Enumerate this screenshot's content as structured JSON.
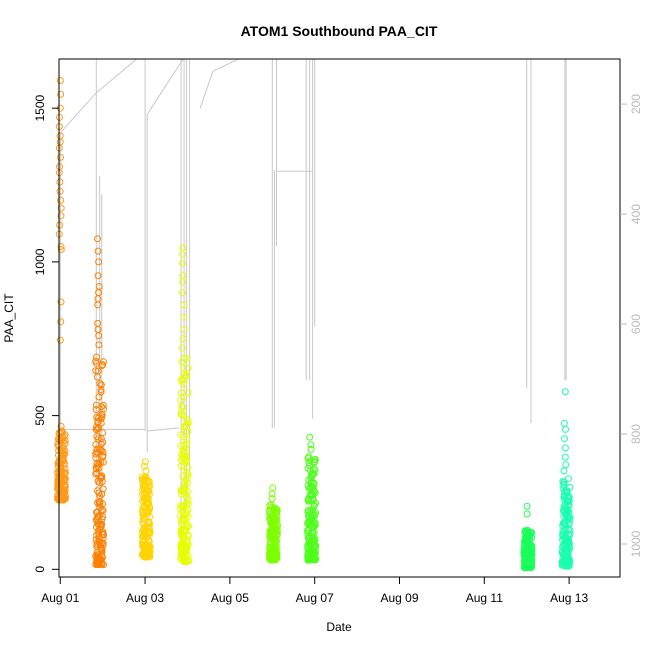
{
  "chart_data": {
    "type": "scatter",
    "title": "ATOM1 Southbound PAA_CIT",
    "xlabel": "Date",
    "ylabel": "PAA_CIT",
    "xlim": [
      -0.03,
      13.2
    ],
    "ylim": [
      -25,
      1660
    ],
    "x_ticks": [
      {
        "value": 0,
        "label": "Aug 01"
      },
      {
        "value": 2,
        "label": "Aug 03"
      },
      {
        "value": 4,
        "label": "Aug 05"
      },
      {
        "value": 6,
        "label": "Aug 07"
      },
      {
        "value": 8,
        "label": "Aug 09"
      },
      {
        "value": 10,
        "label": "Aug 11"
      },
      {
        "value": 12,
        "label": "Aug 13"
      }
    ],
    "y_ticks": [
      0,
      500,
      1000,
      1500
    ],
    "y2_ticks": [
      200,
      400,
      600,
      800,
      1000
    ],
    "y2lim": [
      118,
      1060
    ],
    "grid": false,
    "line_color": "#c8c8c8",
    "series": [
      {
        "day": 0.0,
        "color": "#ff9a1a",
        "ymin": 225,
        "ymax": 460,
        "outliers": [
          1590,
          1545,
          1500,
          1470,
          1440,
          1410,
          1390,
          1370,
          1340,
          1310,
          1290,
          1260,
          1230,
          1200,
          1175,
          1150,
          1120,
          1090,
          1050,
          1040,
          870,
          805,
          745,
          465
        ]
      },
      {
        "day": 0.9,
        "color": "#ff8000",
        "ymin": 15,
        "ymax": 700,
        "outliers": [
          1075,
          1035,
          1000,
          955,
          920,
          900,
          880,
          860,
          800,
          780,
          760,
          730
        ]
      },
      {
        "day": 2.0,
        "color": "#ffd400",
        "ymin": 40,
        "ymax": 305,
        "outliers": [
          350,
          335,
          320
        ]
      },
      {
        "day": 2.9,
        "color": "#e6ff00",
        "ymin": 25,
        "ymax": 700,
        "outliers": [
          1045,
          1025,
          995,
          955,
          935,
          900,
          860,
          820,
          780,
          750,
          720
        ]
      },
      {
        "day": 5.0,
        "color": "#7cff00",
        "ymin": 30,
        "ymax": 210,
        "outliers": [
          265,
          245,
          230
        ]
      },
      {
        "day": 5.9,
        "color": "#4dff1a",
        "ymin": 30,
        "ymax": 370,
        "outliers": [
          430,
          405,
          390
        ]
      },
      {
        "day": 11.0,
        "color": "#1aff5a",
        "ymin": 5,
        "ymax": 130,
        "outliers": [
          205,
          180
        ]
      },
      {
        "day": 11.9,
        "color": "#1affb0",
        "ymin": 10,
        "ymax": 300,
        "outliers": [
          578,
          475,
          455,
          425,
          395,
          365,
          340,
          320
        ]
      }
    ],
    "gray_lines": [
      {
        "x": [
          0.0,
          0.0
        ],
        "y": [
          1420,
          455
        ]
      },
      {
        "x": [
          0.0,
          0.85,
          1.8
        ],
        "y": [
          1420,
          1550,
          1665
        ]
      },
      {
        "x": [
          0.0,
          2.0
        ],
        "y": [
          455,
          455
        ]
      },
      {
        "x": [
          0.85,
          0.85
        ],
        "y": [
          1665,
          80
        ]
      },
      {
        "x": [
          0.93,
          0.93
        ],
        "y": [
          1280,
          110
        ]
      },
      {
        "x": [
          0.98,
          0.98
        ],
        "y": [
          1220,
          110
        ]
      },
      {
        "x": [
          2.0,
          2.0
        ],
        "y": [
          1665,
          450
        ]
      },
      {
        "x": [
          2.05,
          2.05
        ],
        "y": [
          1480,
          380
        ]
      },
      {
        "x": [
          2.05,
          2.9
        ],
        "y": [
          1480,
          1665
        ]
      },
      {
        "x": [
          2.05,
          2.8
        ],
        "y": [
          450,
          460
        ]
      },
      {
        "x": [
          2.85,
          2.85
        ],
        "y": [
          1665,
          110
        ]
      },
      {
        "x": [
          2.92,
          2.92
        ],
        "y": [
          1665,
          180
        ]
      },
      {
        "x": [
          2.98,
          2.98
        ],
        "y": [
          1665,
          200
        ]
      },
      {
        "x": [
          3.05,
          3.05
        ],
        "y": [
          1665,
          300
        ]
      },
      {
        "x": [
          3.3,
          3.6,
          4.2
        ],
        "y": [
          1500,
          1620,
          1665
        ]
      },
      {
        "x": [
          5.0,
          5.0
        ],
        "y": [
          1665,
          460
        ]
      },
      {
        "x": [
          5.05,
          5.05
        ],
        "y": [
          1300,
          460
        ]
      },
      {
        "x": [
          5.1,
          5.1
        ],
        "y": [
          1665,
          1050
        ]
      },
      {
        "x": [
          5.1,
          5.95
        ],
        "y": [
          1295,
          1295
        ]
      },
      {
        "x": [
          5.8,
          5.8
        ],
        "y": [
          1665,
          615
        ]
      },
      {
        "x": [
          5.88,
          5.88
        ],
        "y": [
          1665,
          615
        ]
      },
      {
        "x": [
          5.95,
          5.95
        ],
        "y": [
          1665,
          490
        ]
      },
      {
        "x": [
          6.0,
          6.0
        ],
        "y": [
          1665,
          790
        ]
      },
      {
        "x": [
          11.0,
          11.0
        ],
        "y": [
          1665,
          590
        ]
      },
      {
        "x": [
          11.1,
          11.1
        ],
        "y": [
          1665,
          475
        ]
      },
      {
        "x": [
          11.9,
          11.9
        ],
        "y": [
          1665,
          615
        ]
      },
      {
        "x": [
          11.93,
          11.93
        ],
        "y": [
          1665,
          615
        ]
      }
    ]
  }
}
